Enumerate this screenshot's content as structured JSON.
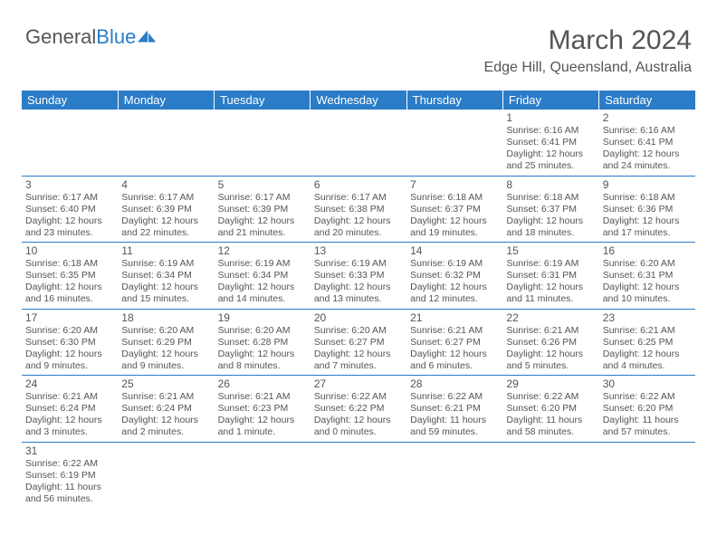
{
  "brand": {
    "part1": "General",
    "part2": "Blue",
    "logo_color": "#2a7cc7",
    "text_color": "#555555"
  },
  "title": "March 2024",
  "location": "Edge Hill, Queensland, Australia",
  "header_bg": "#2a7cc7",
  "header_fg": "#ffffff",
  "divider_color": "#2a7cc7",
  "weekdays": [
    "Sunday",
    "Monday",
    "Tuesday",
    "Wednesday",
    "Thursday",
    "Friday",
    "Saturday"
  ],
  "weeks": [
    [
      null,
      null,
      null,
      null,
      null,
      {
        "day": "1",
        "sunrise": "Sunrise: 6:16 AM",
        "sunset": "Sunset: 6:41 PM",
        "daylight": "Daylight: 12 hours and 25 minutes."
      },
      {
        "day": "2",
        "sunrise": "Sunrise: 6:16 AM",
        "sunset": "Sunset: 6:41 PM",
        "daylight": "Daylight: 12 hours and 24 minutes."
      }
    ],
    [
      {
        "day": "3",
        "sunrise": "Sunrise: 6:17 AM",
        "sunset": "Sunset: 6:40 PM",
        "daylight": "Daylight: 12 hours and 23 minutes."
      },
      {
        "day": "4",
        "sunrise": "Sunrise: 6:17 AM",
        "sunset": "Sunset: 6:39 PM",
        "daylight": "Daylight: 12 hours and 22 minutes."
      },
      {
        "day": "5",
        "sunrise": "Sunrise: 6:17 AM",
        "sunset": "Sunset: 6:39 PM",
        "daylight": "Daylight: 12 hours and 21 minutes."
      },
      {
        "day": "6",
        "sunrise": "Sunrise: 6:17 AM",
        "sunset": "Sunset: 6:38 PM",
        "daylight": "Daylight: 12 hours and 20 minutes."
      },
      {
        "day": "7",
        "sunrise": "Sunrise: 6:18 AM",
        "sunset": "Sunset: 6:37 PM",
        "daylight": "Daylight: 12 hours and 19 minutes."
      },
      {
        "day": "8",
        "sunrise": "Sunrise: 6:18 AM",
        "sunset": "Sunset: 6:37 PM",
        "daylight": "Daylight: 12 hours and 18 minutes."
      },
      {
        "day": "9",
        "sunrise": "Sunrise: 6:18 AM",
        "sunset": "Sunset: 6:36 PM",
        "daylight": "Daylight: 12 hours and 17 minutes."
      }
    ],
    [
      {
        "day": "10",
        "sunrise": "Sunrise: 6:18 AM",
        "sunset": "Sunset: 6:35 PM",
        "daylight": "Daylight: 12 hours and 16 minutes."
      },
      {
        "day": "11",
        "sunrise": "Sunrise: 6:19 AM",
        "sunset": "Sunset: 6:34 PM",
        "daylight": "Daylight: 12 hours and 15 minutes."
      },
      {
        "day": "12",
        "sunrise": "Sunrise: 6:19 AM",
        "sunset": "Sunset: 6:34 PM",
        "daylight": "Daylight: 12 hours and 14 minutes."
      },
      {
        "day": "13",
        "sunrise": "Sunrise: 6:19 AM",
        "sunset": "Sunset: 6:33 PM",
        "daylight": "Daylight: 12 hours and 13 minutes."
      },
      {
        "day": "14",
        "sunrise": "Sunrise: 6:19 AM",
        "sunset": "Sunset: 6:32 PM",
        "daylight": "Daylight: 12 hours and 12 minutes."
      },
      {
        "day": "15",
        "sunrise": "Sunrise: 6:19 AM",
        "sunset": "Sunset: 6:31 PM",
        "daylight": "Daylight: 12 hours and 11 minutes."
      },
      {
        "day": "16",
        "sunrise": "Sunrise: 6:20 AM",
        "sunset": "Sunset: 6:31 PM",
        "daylight": "Daylight: 12 hours and 10 minutes."
      }
    ],
    [
      {
        "day": "17",
        "sunrise": "Sunrise: 6:20 AM",
        "sunset": "Sunset: 6:30 PM",
        "daylight": "Daylight: 12 hours and 9 minutes."
      },
      {
        "day": "18",
        "sunrise": "Sunrise: 6:20 AM",
        "sunset": "Sunset: 6:29 PM",
        "daylight": "Daylight: 12 hours and 9 minutes."
      },
      {
        "day": "19",
        "sunrise": "Sunrise: 6:20 AM",
        "sunset": "Sunset: 6:28 PM",
        "daylight": "Daylight: 12 hours and 8 minutes."
      },
      {
        "day": "20",
        "sunrise": "Sunrise: 6:20 AM",
        "sunset": "Sunset: 6:27 PM",
        "daylight": "Daylight: 12 hours and 7 minutes."
      },
      {
        "day": "21",
        "sunrise": "Sunrise: 6:21 AM",
        "sunset": "Sunset: 6:27 PM",
        "daylight": "Daylight: 12 hours and 6 minutes."
      },
      {
        "day": "22",
        "sunrise": "Sunrise: 6:21 AM",
        "sunset": "Sunset: 6:26 PM",
        "daylight": "Daylight: 12 hours and 5 minutes."
      },
      {
        "day": "23",
        "sunrise": "Sunrise: 6:21 AM",
        "sunset": "Sunset: 6:25 PM",
        "daylight": "Daylight: 12 hours and 4 minutes."
      }
    ],
    [
      {
        "day": "24",
        "sunrise": "Sunrise: 6:21 AM",
        "sunset": "Sunset: 6:24 PM",
        "daylight": "Daylight: 12 hours and 3 minutes."
      },
      {
        "day": "25",
        "sunrise": "Sunrise: 6:21 AM",
        "sunset": "Sunset: 6:24 PM",
        "daylight": "Daylight: 12 hours and 2 minutes."
      },
      {
        "day": "26",
        "sunrise": "Sunrise: 6:21 AM",
        "sunset": "Sunset: 6:23 PM",
        "daylight": "Daylight: 12 hours and 1 minute."
      },
      {
        "day": "27",
        "sunrise": "Sunrise: 6:22 AM",
        "sunset": "Sunset: 6:22 PM",
        "daylight": "Daylight: 12 hours and 0 minutes."
      },
      {
        "day": "28",
        "sunrise": "Sunrise: 6:22 AM",
        "sunset": "Sunset: 6:21 PM",
        "daylight": "Daylight: 11 hours and 59 minutes."
      },
      {
        "day": "29",
        "sunrise": "Sunrise: 6:22 AM",
        "sunset": "Sunset: 6:20 PM",
        "daylight": "Daylight: 11 hours and 58 minutes."
      },
      {
        "day": "30",
        "sunrise": "Sunrise: 6:22 AM",
        "sunset": "Sunset: 6:20 PM",
        "daylight": "Daylight: 11 hours and 57 minutes."
      }
    ],
    [
      {
        "day": "31",
        "sunrise": "Sunrise: 6:22 AM",
        "sunset": "Sunset: 6:19 PM",
        "daylight": "Daylight: 11 hours and 56 minutes."
      },
      null,
      null,
      null,
      null,
      null,
      null
    ]
  ]
}
